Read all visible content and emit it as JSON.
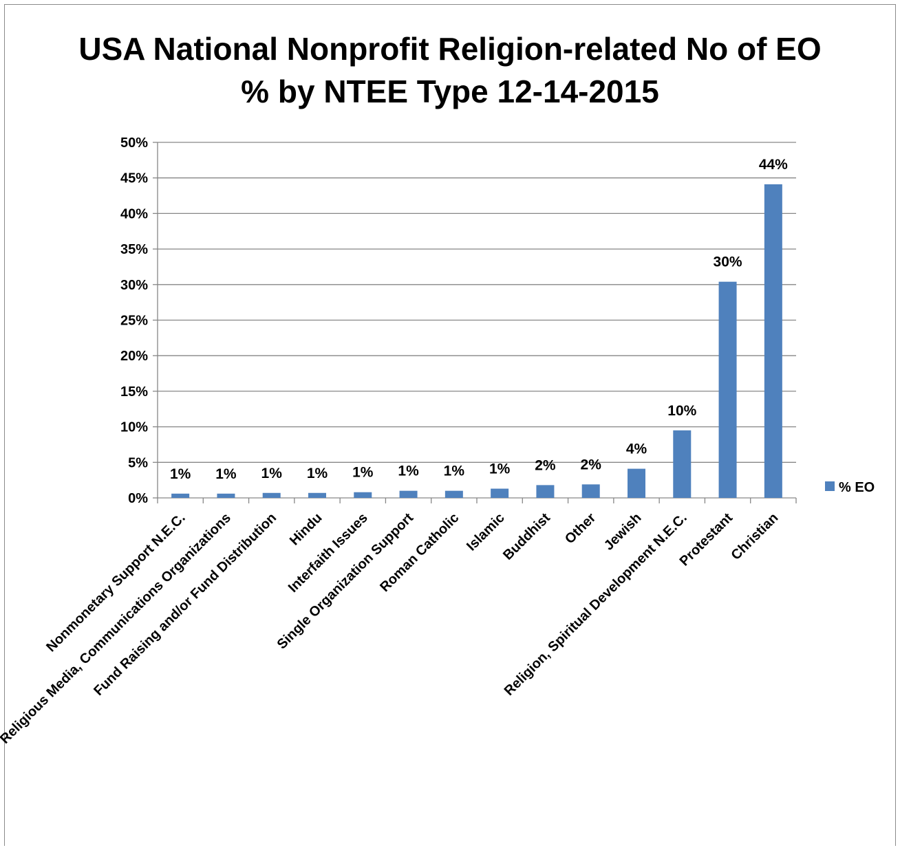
{
  "chart_data": {
    "type": "bar",
    "title_lines": [
      "USA National Nonprofit Religion-related No of EO",
      "% by NTEE Type 12-14-2015"
    ],
    "categories": [
      "Nonmonetary Support N.E.C.",
      "Religious Media, Communications Organizations",
      "Fund Raising and/or Fund Distribution",
      "Hindu",
      "Interfaith Issues",
      "Single Organization Support",
      "Roman Catholic",
      "Islamic",
      "Buddhist",
      "Other",
      "Jewish",
      "Religion, Spiritual Development N.E.C.",
      "Protestant",
      "Christian"
    ],
    "series": [
      {
        "name": "% EO",
        "values": [
          0.6,
          0.6,
          0.7,
          0.7,
          0.8,
          1.0,
          1.0,
          1.3,
          1.8,
          1.9,
          4.1,
          9.5,
          30.4,
          44.1
        ],
        "labels": [
          "1%",
          "1%",
          "1%",
          "1%",
          "1%",
          "1%",
          "1%",
          "1%",
          "2%",
          "2%",
          "4%",
          "10%",
          "30%",
          "44%"
        ]
      }
    ],
    "ylim": [
      0,
      50
    ],
    "yticks": [
      0,
      5,
      10,
      15,
      20,
      25,
      30,
      35,
      40,
      45,
      50
    ],
    "ytick_labels": [
      "0%",
      "5%",
      "10%",
      "15%",
      "20%",
      "25%",
      "30%",
      "35%",
      "40%",
      "45%",
      "50%"
    ],
    "xlabel": "",
    "ylabel": "",
    "grid": true,
    "legend_position": "right",
    "colors": {
      "bar": "#4f81bd",
      "grid": "#868686",
      "axis": "#868686"
    }
  }
}
